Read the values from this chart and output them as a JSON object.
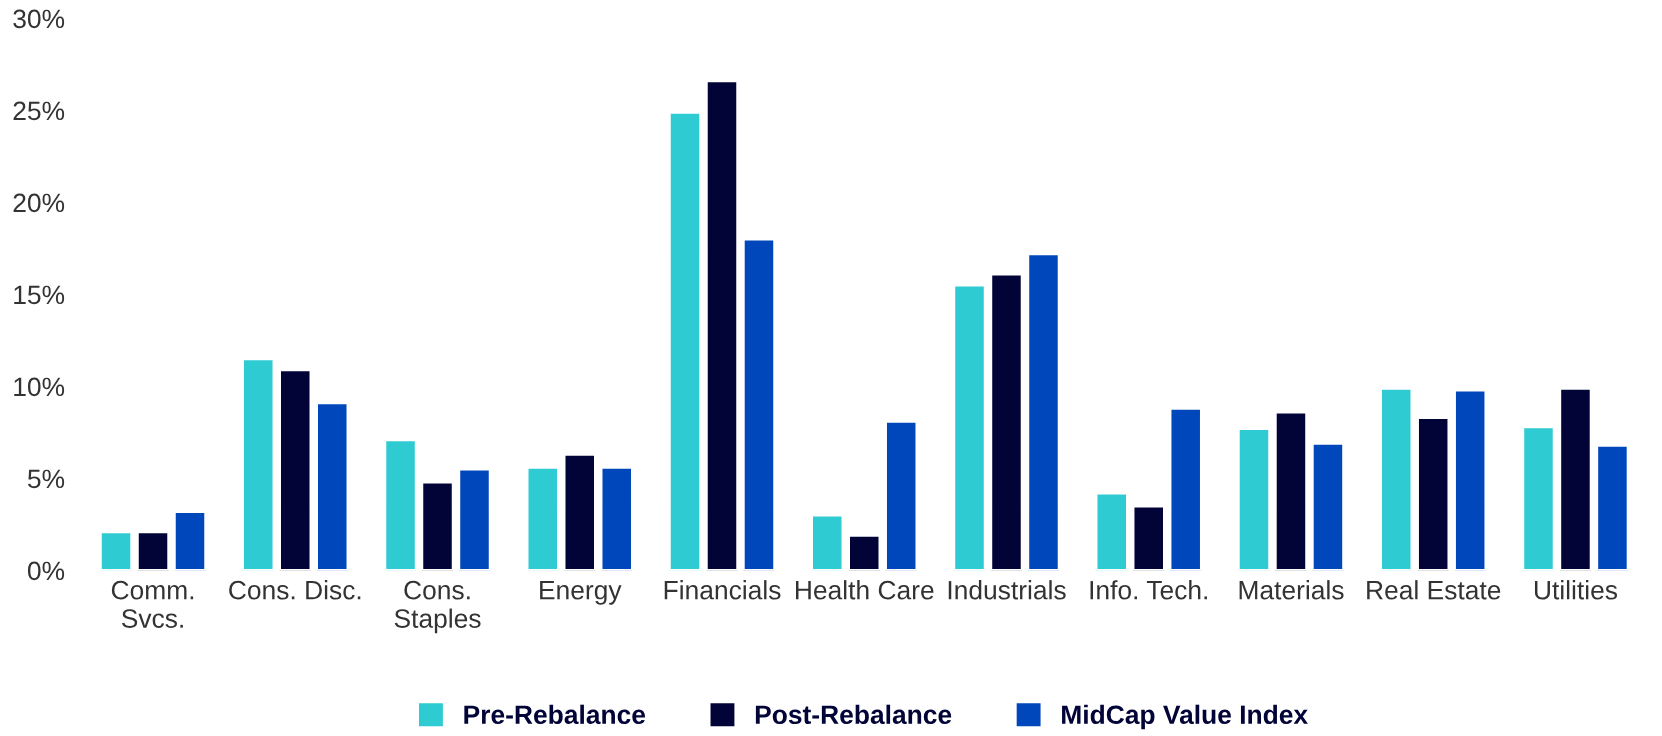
{
  "chart_data": {
    "type": "bar",
    "categories": [
      "Comm.\nSvcs.",
      "Cons. Disc.",
      "Cons.\nStaples",
      "Energy",
      "Financials",
      "Health Care",
      "Industrials",
      "Info. Tech.",
      "Materials",
      "Real Estate",
      "Utilities"
    ],
    "series": [
      {
        "name": "Pre-Rebalance",
        "color": "#2ecbd3",
        "values": [
          2.1,
          11.5,
          7.1,
          5.6,
          24.9,
          3.0,
          15.5,
          4.2,
          7.7,
          9.9,
          7.8
        ]
      },
      {
        "name": "Post-Rebalance",
        "color": "#020438",
        "values": [
          2.1,
          10.9,
          4.8,
          6.3,
          26.6,
          1.9,
          16.1,
          3.5,
          8.6,
          8.3,
          9.9
        ]
      },
      {
        "name": "MidCap Value Index",
        "color": "#0047bb",
        "values": [
          3.2,
          9.1,
          5.5,
          5.6,
          18.0,
          8.1,
          17.2,
          8.8,
          6.9,
          9.8,
          6.8
        ]
      }
    ],
    "ylim": [
      0,
      30
    ],
    "yticks": [
      {
        "value": 0,
        "label": "0%"
      },
      {
        "value": 5,
        "label": "5%"
      },
      {
        "value": 10,
        "label": "10%"
      },
      {
        "value": 15,
        "label": "15%"
      },
      {
        "value": 20,
        "label": "20%"
      },
      {
        "value": 25,
        "label": "25%"
      },
      {
        "value": 30,
        "label": "30%"
      }
    ],
    "grid": false,
    "legend": "bottom"
  }
}
